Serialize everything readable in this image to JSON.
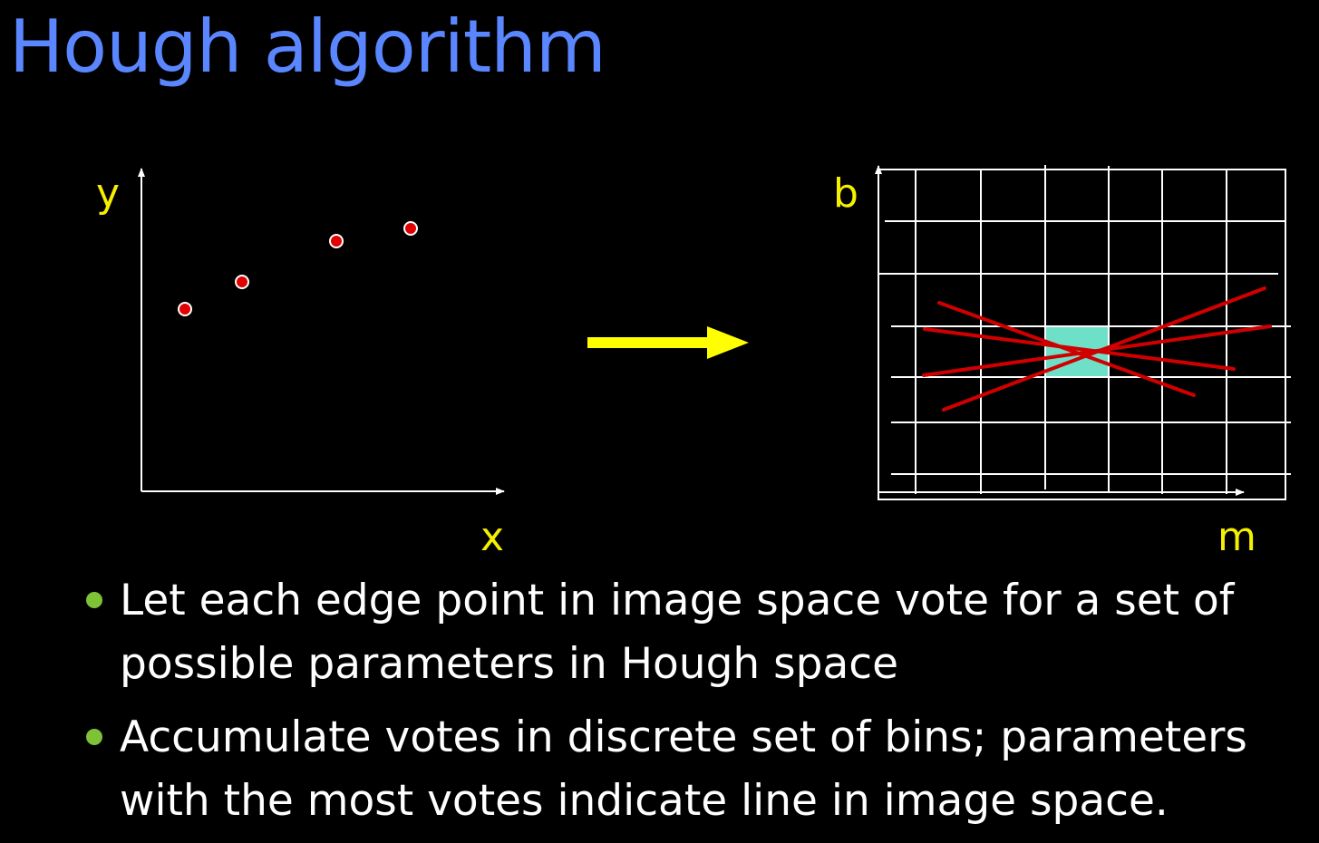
{
  "slide": {
    "title": "Hough algorithm"
  },
  "image_space": {
    "x_label": "x",
    "y_label": "y",
    "edge_points": 4,
    "point_color": "#e00000"
  },
  "transform_arrow": {
    "color": "#ffff00",
    "direction": "right"
  },
  "hough_space": {
    "x_label": "m",
    "y_label": "b",
    "grid_color": "#ffffff",
    "line_color": "#d00000",
    "line_count": 4,
    "highlight_bin_color": "#6fe0c8"
  },
  "bullets": [
    {
      "lines": [
        "Let each edge point in image space vote for a set of",
        "possible parameters in Hough space"
      ]
    },
    {
      "lines": [
        "Accumulate votes in discrete set of bins; parameters",
        "with the most votes indicate line in image space."
      ]
    }
  ],
  "colors": {
    "title": "#5a86ff",
    "axis_labels": "#f5ef00",
    "bullet_marker": "#7ec237",
    "text": "#ffffff",
    "background": "#000000"
  }
}
